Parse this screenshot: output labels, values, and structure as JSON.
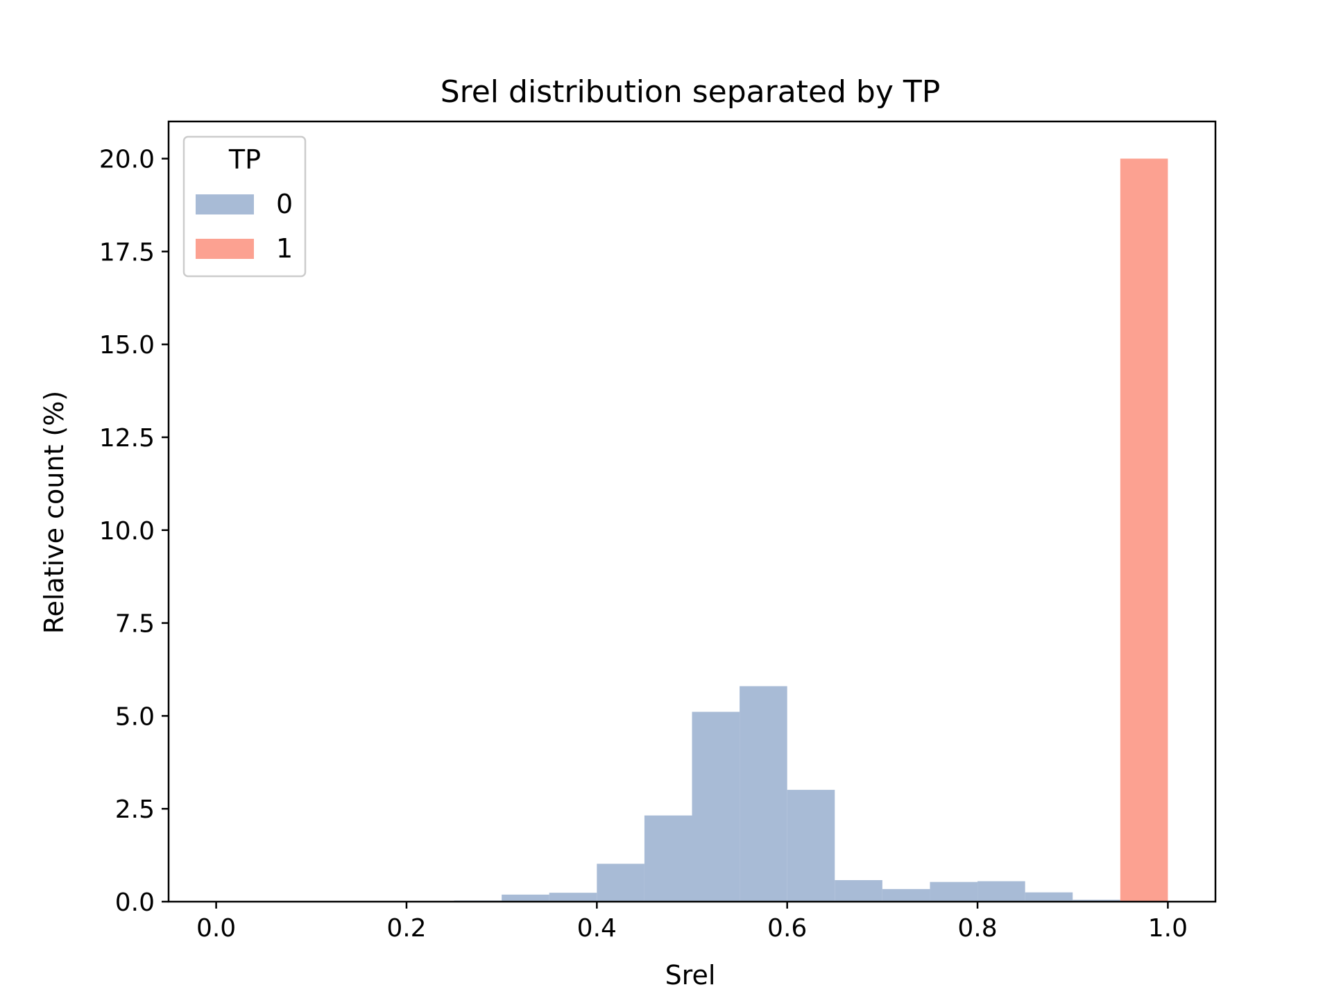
{
  "chart_data": {
    "type": "bar",
    "title": "Srel distribution separated by TP",
    "xlabel": "Srel",
    "ylabel": "Relative count (%)",
    "xlim": [
      -0.05,
      1.05
    ],
    "ylim": [
      0,
      21
    ],
    "x_ticks": [
      "0.0",
      "0.2",
      "0.4",
      "0.6",
      "0.8",
      "1.0"
    ],
    "x_tick_values": [
      0.0,
      0.2,
      0.4,
      0.6,
      0.8,
      1.0
    ],
    "y_ticks": [
      "0.0",
      "2.5",
      "5.0",
      "7.5",
      "10.0",
      "12.5",
      "15.0",
      "17.5",
      "20.0"
    ],
    "y_tick_values": [
      0.0,
      2.5,
      5.0,
      7.5,
      10.0,
      12.5,
      15.0,
      17.5,
      20.0
    ],
    "bin_width": 0.05,
    "grid": false,
    "legend": {
      "title": "TP",
      "placement": "top-left"
    },
    "series": [
      {
        "name": "0",
        "color": "#a8bbd6",
        "bins": [
          {
            "x0": 0.25,
            "value": 0.03
          },
          {
            "x0": 0.3,
            "value": 0.19
          },
          {
            "x0": 0.35,
            "value": 0.24
          },
          {
            "x0": 0.4,
            "value": 1.02
          },
          {
            "x0": 0.45,
            "value": 2.32
          },
          {
            "x0": 0.5,
            "value": 5.11
          },
          {
            "x0": 0.55,
            "value": 5.8
          },
          {
            "x0": 0.6,
            "value": 3.01
          },
          {
            "x0": 0.65,
            "value": 0.58
          },
          {
            "x0": 0.7,
            "value": 0.34
          },
          {
            "x0": 0.75,
            "value": 0.53
          },
          {
            "x0": 0.8,
            "value": 0.55
          },
          {
            "x0": 0.85,
            "value": 0.25
          },
          {
            "x0": 0.9,
            "value": 0.05
          }
        ]
      },
      {
        "name": "1",
        "color": "#fca191",
        "bins": [
          {
            "x0": 0.95,
            "value": 20.0
          }
        ]
      }
    ]
  }
}
